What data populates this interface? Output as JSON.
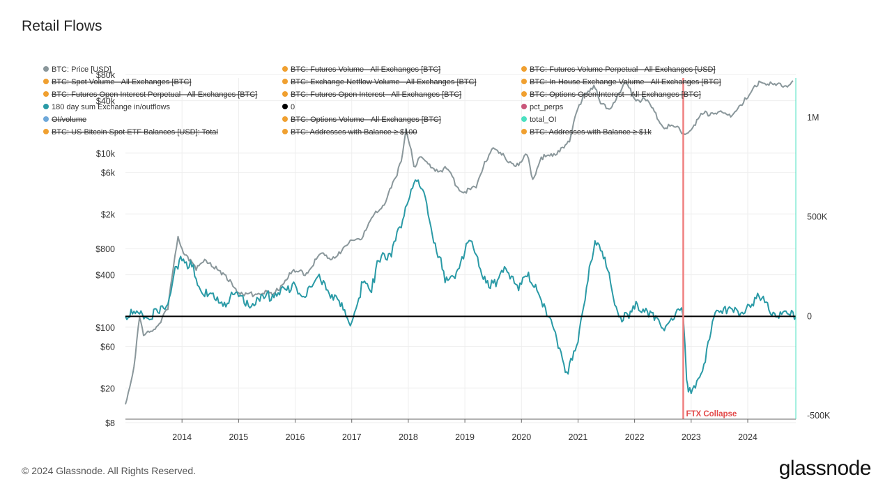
{
  "title": "Retail Flows",
  "footer": "© 2024 Glassnode. All Rights Reserved.",
  "brand": "glassnode",
  "colors": {
    "price": "#8a979b",
    "flows": "#2a9aa6",
    "zero": "#000000",
    "ftx": "#f08080",
    "orange": "#f0a030",
    "pink": "#c9567a",
    "blue": "#6ea8d9",
    "mint": "#4be0c0",
    "grid": "#eeeeee"
  },
  "chart_data": {
    "type": "line",
    "title": "Retail Flows",
    "x_ticks": [
      "2014",
      "2015",
      "2016",
      "2017",
      "2018",
      "2019",
      "2020",
      "2021",
      "2022",
      "2023",
      "2024"
    ],
    "x_range": [
      2013.0,
      2024.85
    ],
    "y_left": {
      "scale": "log",
      "range": [
        8,
        80000
      ],
      "ticks": [
        {
          "v": 8,
          "label": "$8"
        },
        {
          "v": 20,
          "label": "$20"
        },
        {
          "v": 60,
          "label": "$60"
        },
        {
          "v": 100,
          "label": "$100"
        },
        {
          "v": 400,
          "label": "$400"
        },
        {
          "v": 800,
          "label": "$800"
        },
        {
          "v": 2000,
          "label": "$2k"
        },
        {
          "v": 6000,
          "label": "$6k"
        },
        {
          "v": 10000,
          "label": "$10k"
        },
        {
          "v": 40000,
          "label": "$40k"
        },
        {
          "v": 80000,
          "label": "$80k"
        }
      ]
    },
    "y_right": {
      "scale": "linear",
      "range": [
        -500000,
        1200000
      ],
      "ticks": [
        {
          "v": -500000,
          "label": "-500K"
        },
        {
          "v": 0,
          "label": "0"
        },
        {
          "v": 500000,
          "label": "500K"
        },
        {
          "v": 1000000,
          "label": "1M"
        }
      ]
    },
    "legend": [
      {
        "label": "BTC: Price [USD]",
        "color": "#8a979b",
        "hidden": false
      },
      {
        "label": "BTC: Futures Volume - All Exchanges [BTC]",
        "color": "#f0a030",
        "hidden": true
      },
      {
        "label": "BTC: Futures Volume Perpetual - All Exchanges [USD]",
        "color": "#f0a030",
        "hidden": true
      },
      {
        "label": "BTC: Spot Volume - All Exchanges [BTC]",
        "color": "#f0a030",
        "hidden": true
      },
      {
        "label": "BTC: Exchange Netflow Volume - All Exchanges [BTC]",
        "color": "#f0a030",
        "hidden": true
      },
      {
        "label": "BTC: In-House Exchange Volume - All Exchanges [BTC]",
        "color": "#f0a030",
        "hidden": true
      },
      {
        "label": "BTC: Futures Open Interest Perpetual - All Exchanges [BTC]",
        "color": "#f0a030",
        "hidden": true
      },
      {
        "label": "BTC: Futures Open Interest - All Exchanges [BTC]",
        "color": "#f0a030",
        "hidden": true
      },
      {
        "label": "BTC: Options Open Interest - All Exchanges [BTC]",
        "color": "#f0a030",
        "hidden": true
      },
      {
        "label": "180 day sum Exchange in/outflows",
        "color": "#2a9aa6",
        "hidden": false
      },
      {
        "label": "0",
        "color": "#000000",
        "hidden": false
      },
      {
        "label": "pct_perps",
        "color": "#c9567a",
        "hidden": false
      },
      {
        "label": "OI/volume",
        "color": "#6ea8d9",
        "hidden": true
      },
      {
        "label": "BTC: Options Volume - All Exchanges [BTC]",
        "color": "#f0a030",
        "hidden": true
      },
      {
        "label": "total_OI",
        "color": "#4be0c0",
        "hidden": false
      },
      {
        "label": "BTC: US Bitcoin Spot ETF Balances [USD]: Total",
        "color": "#f0a030",
        "hidden": true
      },
      {
        "label": "BTC: Addresses with Balance ≥ $100",
        "color": "#f0a030",
        "hidden": true
      },
      {
        "label": "BTC: Addresses with Balance ≥ $1k",
        "color": "#f0a030",
        "hidden": true
      }
    ],
    "annotation": {
      "label": "FTX Collapse",
      "x": 2022.86
    },
    "series": [
      {
        "name": "BTC: Price [USD]",
        "axis": "left",
        "points": [
          [
            2013.0,
            13
          ],
          [
            2013.15,
            35
          ],
          [
            2013.25,
            130
          ],
          [
            2013.32,
            80
          ],
          [
            2013.45,
            90
          ],
          [
            2013.6,
            110
          ],
          [
            2013.75,
            160
          ],
          [
            2013.85,
            500
          ],
          [
            2013.93,
            1100
          ],
          [
            2014.0,
            800
          ],
          [
            2014.1,
            650
          ],
          [
            2014.25,
            450
          ],
          [
            2014.4,
            600
          ],
          [
            2014.5,
            550
          ],
          [
            2014.7,
            400
          ],
          [
            2014.85,
            350
          ],
          [
            2015.0,
            250
          ],
          [
            2015.1,
            230
          ],
          [
            2015.3,
            240
          ],
          [
            2015.5,
            260
          ],
          [
            2015.6,
            230
          ],
          [
            2015.75,
            300
          ],
          [
            2015.9,
            420
          ],
          [
            2016.0,
            430
          ],
          [
            2016.2,
            420
          ],
          [
            2016.45,
            700
          ],
          [
            2016.6,
            620
          ],
          [
            2016.8,
            700
          ],
          [
            2017.0,
            1000
          ],
          [
            2017.2,
            1100
          ],
          [
            2017.4,
            2000
          ],
          [
            2017.55,
            2500
          ],
          [
            2017.7,
            4000
          ],
          [
            2017.8,
            5500
          ],
          [
            2017.9,
            10000
          ],
          [
            2017.96,
            19000
          ],
          [
            2018.05,
            11000
          ],
          [
            2018.1,
            7000
          ],
          [
            2018.2,
            9000
          ],
          [
            2018.35,
            7500
          ],
          [
            2018.5,
            6500
          ],
          [
            2018.7,
            6500
          ],
          [
            2018.88,
            4000
          ],
          [
            2019.0,
            3600
          ],
          [
            2019.2,
            4000
          ],
          [
            2019.35,
            8000
          ],
          [
            2019.5,
            11500
          ],
          [
            2019.6,
            10000
          ],
          [
            2019.8,
            8000
          ],
          [
            2019.95,
            7200
          ],
          [
            2020.1,
            9500
          ],
          [
            2020.2,
            5000
          ],
          [
            2020.35,
            9000
          ],
          [
            2020.55,
            9200
          ],
          [
            2020.7,
            11500
          ],
          [
            2020.85,
            13500
          ],
          [
            2020.97,
            29000
          ],
          [
            2021.1,
            47000
          ],
          [
            2021.28,
            60000
          ],
          [
            2021.4,
            37000
          ],
          [
            2021.55,
            32000
          ],
          [
            2021.75,
            50000
          ],
          [
            2021.85,
            65000
          ],
          [
            2022.0,
            42000
          ],
          [
            2022.2,
            40000
          ],
          [
            2022.35,
            30000
          ],
          [
            2022.5,
            20000
          ],
          [
            2022.7,
            20000
          ],
          [
            2022.86,
            17000
          ],
          [
            2022.92,
            16800
          ],
          [
            2023.05,
            21000
          ],
          [
            2023.2,
            28000
          ],
          [
            2023.5,
            30000
          ],
          [
            2023.7,
            26000
          ],
          [
            2023.85,
            35000
          ],
          [
            2024.0,
            43000
          ],
          [
            2024.2,
            67000
          ],
          [
            2024.35,
            62000
          ],
          [
            2024.5,
            60000
          ],
          [
            2024.65,
            59000
          ],
          [
            2024.8,
            68000
          ]
        ]
      },
      {
        "name": "180 day sum Exchange in/outflows",
        "axis": "right",
        "points": [
          [
            2013.0,
            0
          ],
          [
            2013.3,
            10000
          ],
          [
            2013.6,
            15000
          ],
          [
            2013.75,
            60000
          ],
          [
            2013.88,
            250000
          ],
          [
            2014.0,
            280000
          ],
          [
            2014.1,
            240000
          ],
          [
            2014.2,
            260000
          ],
          [
            2014.3,
            150000
          ],
          [
            2014.45,
            100000
          ],
          [
            2014.6,
            80000
          ],
          [
            2014.75,
            70000
          ],
          [
            2014.9,
            110000
          ],
          [
            2015.0,
            100000
          ],
          [
            2015.15,
            80000
          ],
          [
            2015.3,
            60000
          ],
          [
            2015.45,
            90000
          ],
          [
            2015.6,
            110000
          ],
          [
            2015.75,
            140000
          ],
          [
            2015.9,
            120000
          ],
          [
            2016.0,
            160000
          ],
          [
            2016.15,
            100000
          ],
          [
            2016.3,
            150000
          ],
          [
            2016.4,
            200000
          ],
          [
            2016.5,
            180000
          ],
          [
            2016.65,
            110000
          ],
          [
            2016.8,
            50000
          ],
          [
            2016.9,
            0
          ],
          [
            2017.0,
            -30000
          ],
          [
            2017.05,
            20000
          ],
          [
            2017.2,
            170000
          ],
          [
            2017.35,
            120000
          ],
          [
            2017.45,
            280000
          ],
          [
            2017.55,
            320000
          ],
          [
            2017.7,
            300000
          ],
          [
            2017.85,
            450000
          ],
          [
            2017.95,
            550000
          ],
          [
            2018.05,
            640000
          ],
          [
            2018.15,
            680000
          ],
          [
            2018.3,
            600000
          ],
          [
            2018.4,
            450000
          ],
          [
            2018.55,
            300000
          ],
          [
            2018.65,
            170000
          ],
          [
            2018.8,
            200000
          ],
          [
            2018.95,
            300000
          ],
          [
            2019.1,
            380000
          ],
          [
            2019.25,
            250000
          ],
          [
            2019.4,
            180000
          ],
          [
            2019.55,
            150000
          ],
          [
            2019.7,
            250000
          ],
          [
            2019.85,
            200000
          ],
          [
            2019.95,
            130000
          ],
          [
            2020.1,
            200000
          ],
          [
            2020.25,
            160000
          ],
          [
            2020.35,
            80000
          ],
          [
            2020.45,
            0
          ],
          [
            2020.6,
            -80000
          ],
          [
            2020.7,
            -180000
          ],
          [
            2020.8,
            -280000
          ],
          [
            2020.9,
            -220000
          ],
          [
            2021.0,
            -130000
          ],
          [
            2021.1,
            50000
          ],
          [
            2021.2,
            250000
          ],
          [
            2021.3,
            380000
          ],
          [
            2021.4,
            330000
          ],
          [
            2021.5,
            250000
          ],
          [
            2021.6,
            130000
          ],
          [
            2021.75,
            0
          ],
          [
            2021.9,
            -10000
          ],
          [
            2022.05,
            60000
          ],
          [
            2022.2,
            40000
          ],
          [
            2022.35,
            -20000
          ],
          [
            2022.5,
            -60000
          ],
          [
            2022.65,
            -10000
          ],
          [
            2022.8,
            30000
          ],
          [
            2022.86,
            0
          ],
          [
            2022.92,
            -320000
          ],
          [
            2022.95,
            -380000
          ],
          [
            2023.05,
            -350000
          ],
          [
            2023.25,
            -230000
          ],
          [
            2023.35,
            -80000
          ],
          [
            2023.45,
            30000
          ],
          [
            2023.6,
            50000
          ],
          [
            2023.75,
            20000
          ],
          [
            2023.85,
            0
          ],
          [
            2024.0,
            60000
          ],
          [
            2024.15,
            90000
          ],
          [
            2024.3,
            70000
          ],
          [
            2024.45,
            20000
          ],
          [
            2024.6,
            10000
          ],
          [
            2024.75,
            5000
          ],
          [
            2024.85,
            -5000
          ]
        ]
      }
    ]
  }
}
